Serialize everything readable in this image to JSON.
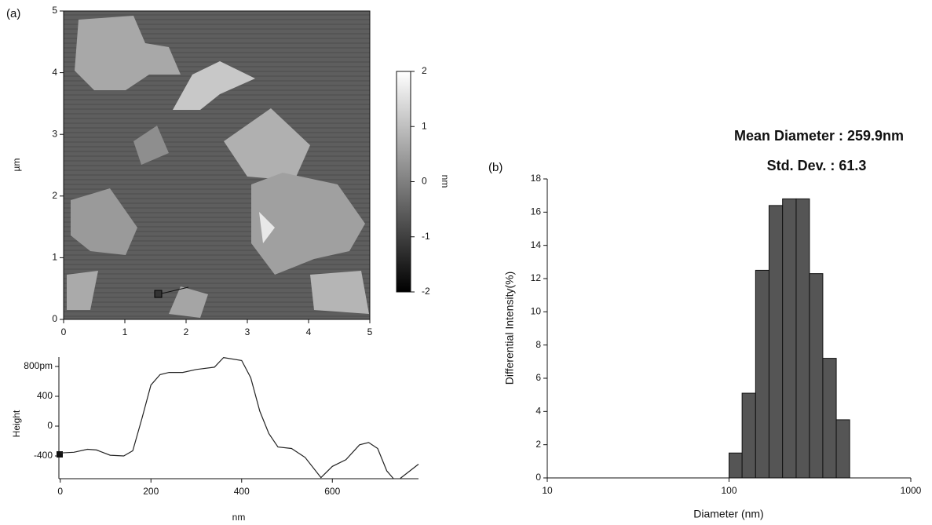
{
  "chart_data": [
    {
      "type": "image",
      "panel_label": "(a)",
      "ylabel": "µm",
      "xlim": [
        0,
        5
      ],
      "xticks": [
        0,
        1,
        2,
        3,
        4,
        5
      ],
      "ylim": [
        0,
        5
      ],
      "yticks": [
        0,
        1,
        2,
        3,
        4,
        5
      ]
    },
    {
      "type": "colorbar",
      "ylabel": "nm",
      "ylim": [
        -2,
        2
      ],
      "yticks": [
        -2,
        -1,
        0,
        1,
        2
      ]
    },
    {
      "type": "line",
      "xlabel": "nm",
      "ylabel": "Height",
      "x": [
        0,
        30,
        60,
        80,
        110,
        140,
        160,
        180,
        200,
        220,
        240,
        270,
        300,
        340,
        360,
        400,
        420,
        440,
        460,
        480,
        510,
        540,
        575,
        600,
        630,
        660,
        680,
        700,
        720,
        735,
        745,
        750,
        790
      ],
      "series": [
        {
          "color": "#222222",
          "values": [
            -360,
            -350,
            -310,
            -320,
            -390,
            -400,
            -330,
            100,
            550,
            690,
            720,
            720,
            760,
            790,
            920,
            880,
            650,
            200,
            -100,
            -280,
            -300,
            -420,
            -690,
            -540,
            -450,
            -250,
            -220,
            -300,
            -600,
            -705,
            null,
            -700,
            -510
          ]
        }
      ],
      "xlim": [
        -3,
        790
      ],
      "xticks": [
        0,
        200,
        400,
        600
      ],
      "ylim": [
        -705,
        926
      ],
      "yticks": [
        -400,
        0,
        400,
        {
          "value": 800,
          "label": "800pm"
        }
      ]
    },
    {
      "type": "histogram",
      "panel_label": "(b)",
      "title": "Mean Diameter : 259.9nm",
      "subtitle": "Std. Dev. : 61.3",
      "xlabel": "Diameter (nm)",
      "ylabel": "Differential Intensity(%)",
      "xscale": "log",
      "color": "#555555",
      "bins": [
        100,
        118,
        140,
        166,
        197,
        234,
        277,
        328,
        389,
        461
      ],
      "values": [
        1.5,
        5.1,
        12.5,
        16.4,
        16.8,
        16.8,
        12.3,
        7.2,
        3.5
      ],
      "xlim": [
        10,
        1000
      ],
      "xticks": [
        10,
        100,
        1000
      ],
      "ylim": [
        0,
        18
      ],
      "yticks": [
        0,
        2,
        4,
        6,
        8,
        10,
        12,
        14,
        16,
        18
      ]
    }
  ]
}
